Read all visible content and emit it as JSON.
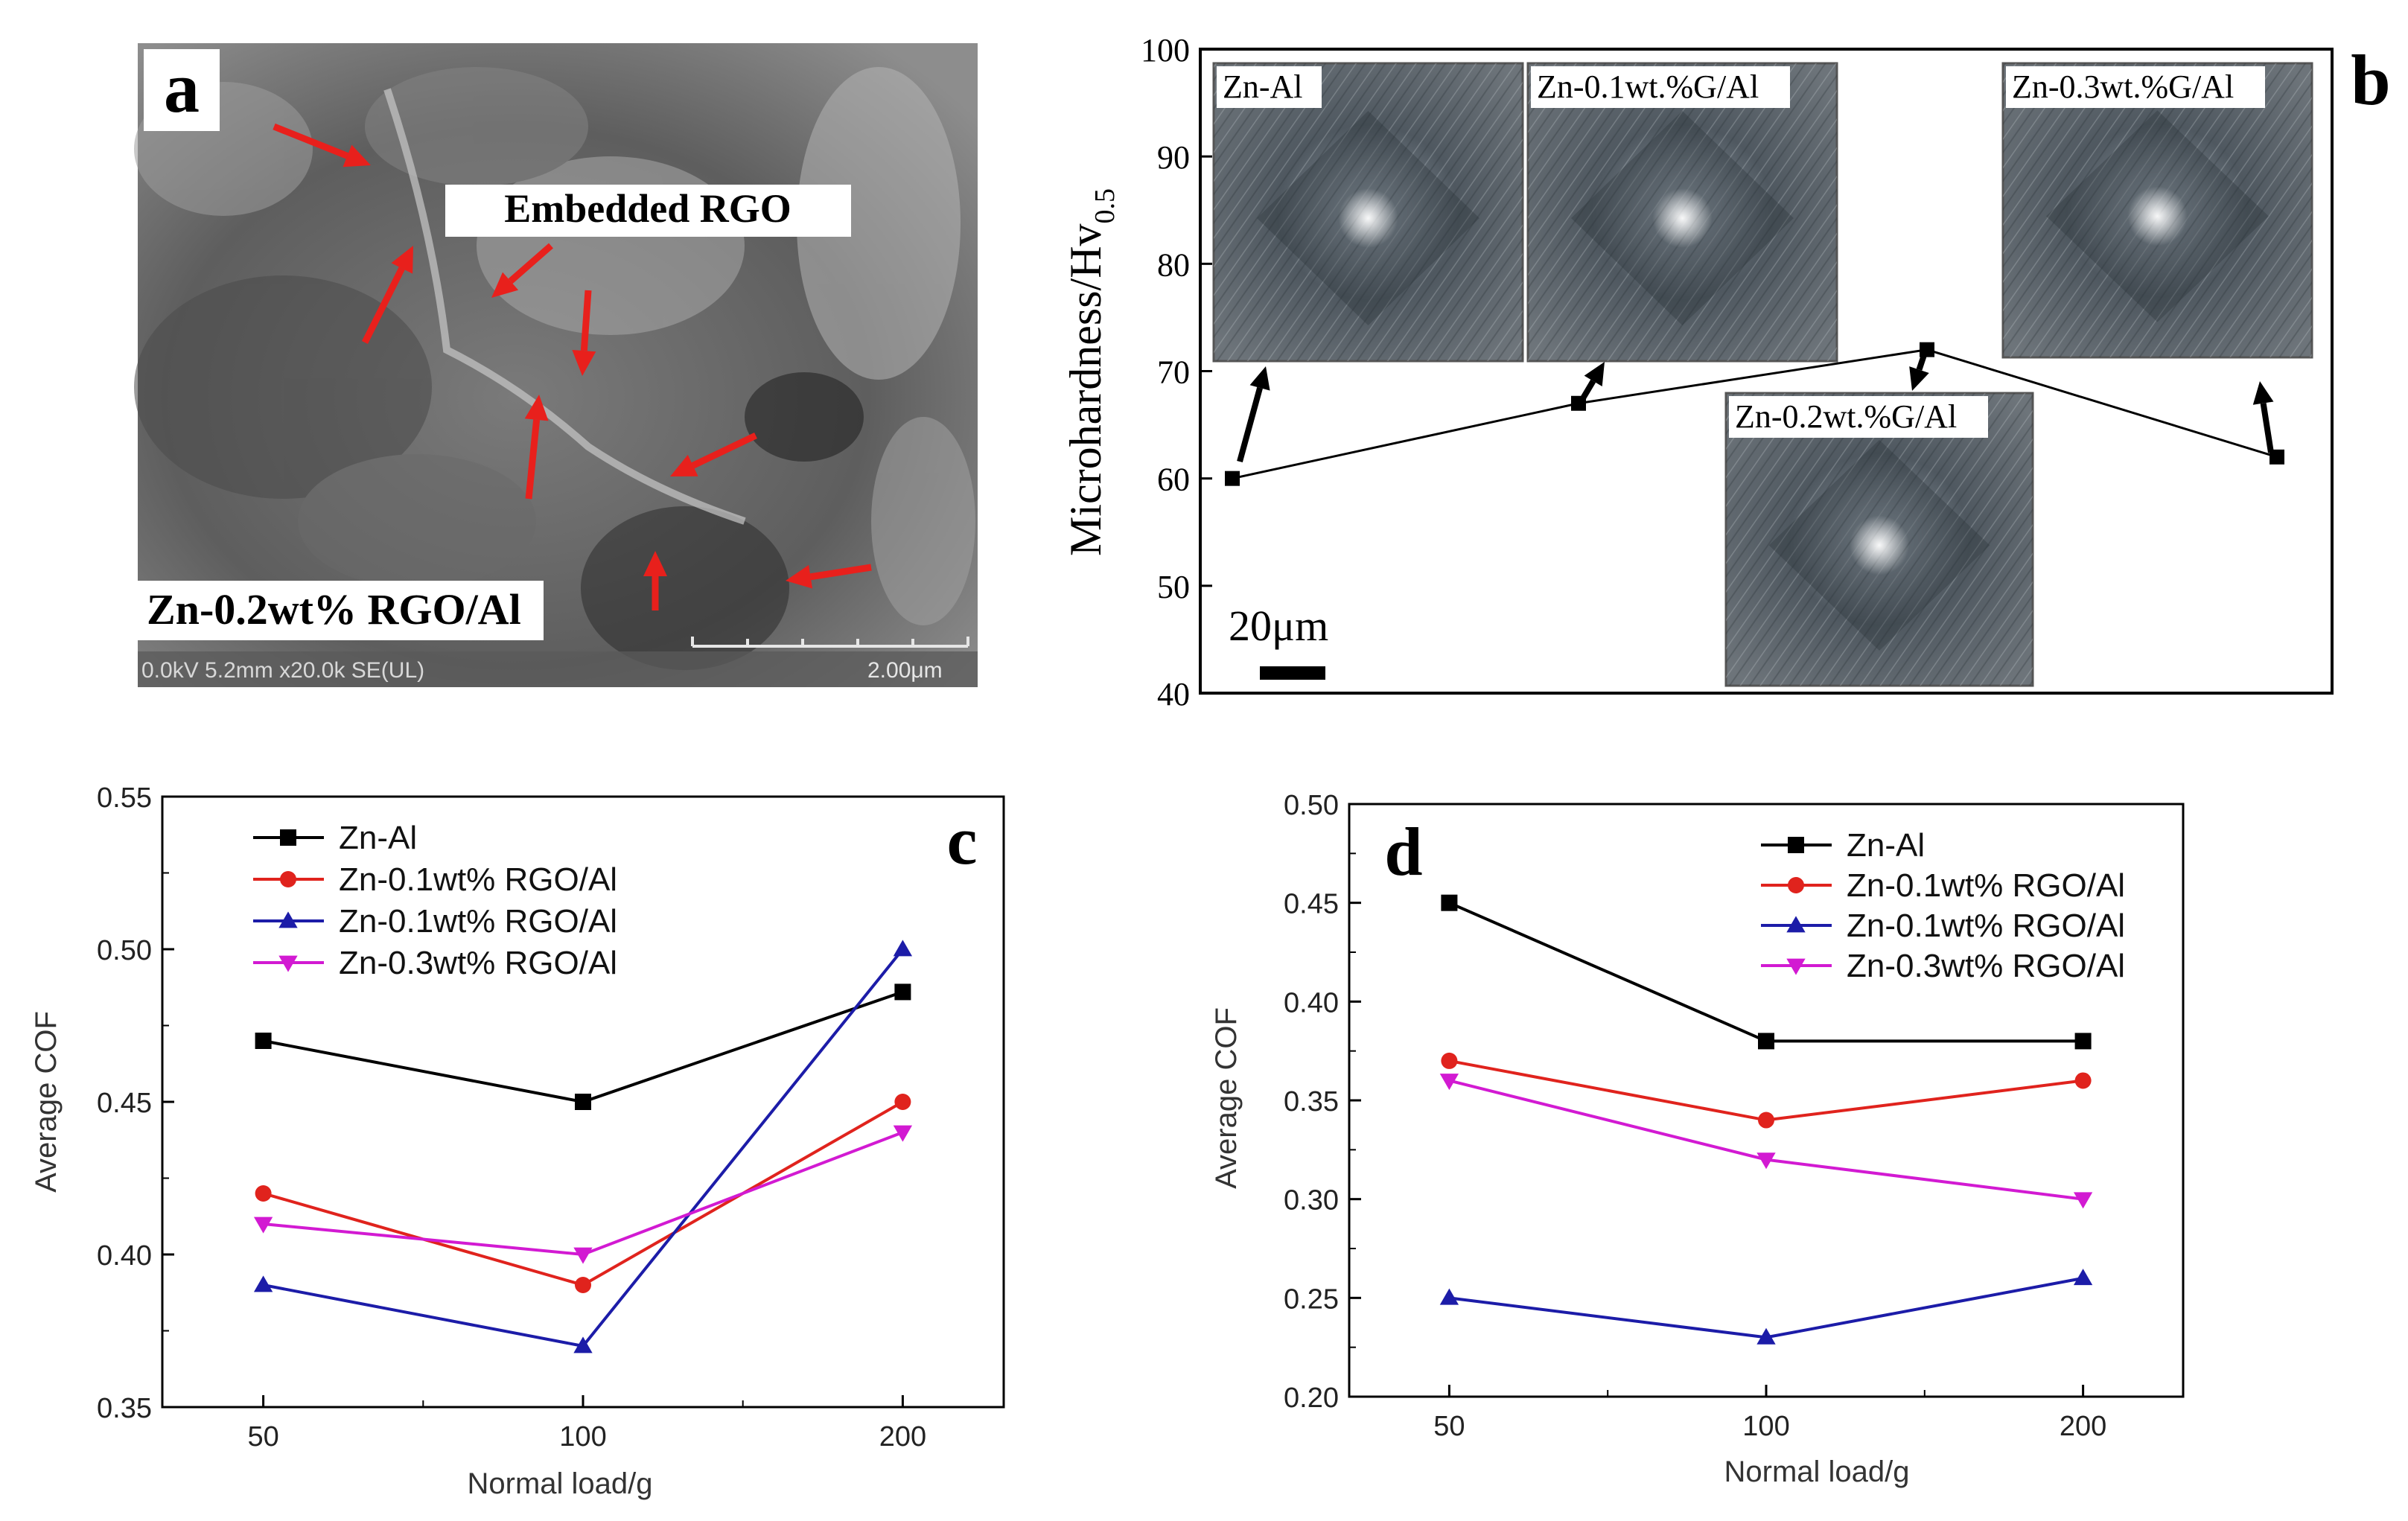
{
  "panel_a": {
    "letter": "a",
    "embedded_label": "Embedded RGO",
    "sample_label": "Zn-0.2wt% RGO/Al",
    "sem_info": "0.0kV 5.2mm x20.0k SE(UL)",
    "scale_text": "2.00μm",
    "colors": {
      "arrow": "#e8201c",
      "sem_dark": "#3f3f3f",
      "sem_light": "#9a9a9a"
    }
  },
  "panel_b": {
    "letter": "b",
    "scale_label": "20μm",
    "chart_data": {
      "type": "line",
      "title": "",
      "xlabel": "",
      "ylabel": "Microhardness/Hv",
      "ylabel_sub": "0.5",
      "ylim": [
        40,
        100
      ],
      "yticks": [
        40,
        50,
        60,
        70,
        80,
        90,
        100
      ],
      "categories": [
        "Zn-Al",
        "Zn-0.1wt.%G/Al",
        "Zn-0.2wt.%G/Al",
        "Zn-0.3wt.%G/Al"
      ],
      "values": [
        60,
        67,
        72,
        62
      ],
      "inset_labels": [
        "Zn-Al",
        "Zn-0.1wt.%G/Al",
        "Zn-0.2wt.%G/Al",
        "Zn-0.3wt.%G/Al"
      ]
    }
  },
  "panel_c": {
    "letter": "c",
    "chart_data": {
      "type": "line",
      "title": "",
      "xlabel": "Normal load/g",
      "ylabel": "Average COF",
      "categories": [
        "50",
        "100",
        "200"
      ],
      "ylim": [
        0.35,
        0.55
      ],
      "yticks": [
        "0.35",
        "0.40",
        "0.45",
        "0.50",
        "0.55"
      ],
      "legend_position": "top-left",
      "series": [
        {
          "name": "Zn-Al",
          "color": "#000000",
          "marker": "square",
          "values": [
            0.47,
            0.45,
            0.486
          ]
        },
        {
          "name": "Zn-0.1wt% RGO/Al",
          "color": "#e0231d",
          "marker": "circle",
          "values": [
            0.42,
            0.39,
            0.45
          ]
        },
        {
          "name": "Zn-0.1wt% RGO/Al",
          "color": "#1c1ca8",
          "marker": "triangle-up",
          "values": [
            0.39,
            0.37,
            0.5
          ]
        },
        {
          "name": "Zn-0.3wt% RGO/Al",
          "color": "#d21ad2",
          "marker": "triangle-down",
          "values": [
            0.41,
            0.4,
            0.44
          ]
        }
      ]
    }
  },
  "panel_d": {
    "letter": "d",
    "chart_data": {
      "type": "line",
      "title": "",
      "xlabel": "Normal load/g",
      "ylabel": "Average COF",
      "categories": [
        "50",
        "100",
        "200"
      ],
      "ylim": [
        0.2,
        0.5
      ],
      "yticks": [
        "0.20",
        "0.25",
        "0.30",
        "0.35",
        "0.40",
        "0.45",
        "0.50"
      ],
      "legend_position": "top-right",
      "series": [
        {
          "name": "Zn-Al",
          "color": "#000000",
          "marker": "square",
          "values": [
            0.45,
            0.38,
            0.38
          ]
        },
        {
          "name": "Zn-0.1wt% RGO/Al",
          "color": "#e0231d",
          "marker": "circle",
          "values": [
            0.37,
            0.34,
            0.36
          ]
        },
        {
          "name": "Zn-0.1wt% RGO/Al",
          "color": "#1c1ca8",
          "marker": "triangle-up",
          "values": [
            0.25,
            0.23,
            0.26
          ]
        },
        {
          "name": "Zn-0.3wt% RGO/Al",
          "color": "#d21ad2",
          "marker": "triangle-down",
          "values": [
            0.36,
            0.32,
            0.3
          ]
        }
      ]
    }
  }
}
